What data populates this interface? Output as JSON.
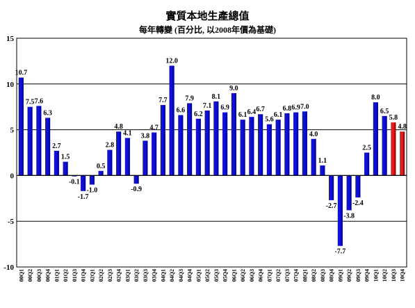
{
  "chart_data": {
    "type": "bar",
    "title": "實質本地生產總值",
    "subtitle": "每年轉變 (百分比, 以2008年價為基礎)",
    "xlabel": "",
    "ylabel": "",
    "ylim": [
      -10,
      15
    ],
    "yticks": [
      -10,
      -5,
      0,
      5,
      10,
      15
    ],
    "grid": true,
    "legend": "none",
    "categories": [
      "00Q1",
      "00Q2",
      "00Q3",
      "00Q4",
      "01Q1",
      "01Q2",
      "01Q3",
      "01Q4",
      "02Q1",
      "02Q2",
      "02Q3",
      "02Q4",
      "03Q1",
      "03Q2",
      "03Q3",
      "03Q4",
      "04Q1",
      "04Q2",
      "04Q3",
      "04Q4",
      "05Q1",
      "05Q2",
      "05Q3",
      "05Q4",
      "06Q1",
      "06Q2",
      "06Q3",
      "06Q4",
      "07Q1",
      "07Q2",
      "07Q3",
      "07Q4",
      "08Q1",
      "08Q2",
      "08Q3",
      "08Q4",
      "09Q1",
      "09Q2",
      "09Q3",
      "09Q4",
      "10Q1",
      "10Q2",
      "10Q3",
      "10Q4"
    ],
    "values": [
      10.7,
      7.5,
      7.6,
      6.3,
      2.7,
      1.5,
      -0.1,
      -1.7,
      -1.0,
      0.5,
      2.8,
      4.8,
      4.1,
      -0.9,
      3.8,
      4.7,
      7.7,
      12.0,
      6.6,
      7.9,
      6.2,
      7.1,
      8.1,
      6.9,
      9.0,
      6.1,
      6.4,
      6.7,
      5.6,
      6.1,
      6.8,
      6.9,
      7.0,
      4.0,
      1.1,
      -2.7,
      -7.7,
      -3.8,
      -2.4,
      2.5,
      8.0,
      6.5,
      5.8,
      4.8
    ],
    "labels": [
      "10.7",
      "7.5",
      "7.6",
      "6.3",
      "2.7",
      "1.5",
      "-0.1",
      "-1.7",
      "-1.0",
      "0.5",
      "2.8",
      "4.8",
      "4.1",
      "-0.9",
      "3.8",
      "4.7",
      "7.7",
      "12.0",
      "6.6",
      "7.9",
      "6.2",
      "7.1",
      "8.1",
      "6.9",
      "9.0",
      "6.1",
      "6.4",
      "6.7",
      "5.6",
      "6.1",
      "6.8",
      "6.9",
      "7.0",
      "4.0",
      "1.1",
      "-2.7",
      "-7.7",
      "-3.8",
      "-2.4",
      "2.5",
      "8.0",
      "6.5",
      "5.8",
      "4.8"
    ],
    "highlight_from_index": 42,
    "colors": {
      "main": "#1010d8",
      "main_dark": "#000060",
      "highlight": "#e02020",
      "highlight_dark": "#600000",
      "grid": "#000000"
    }
  }
}
